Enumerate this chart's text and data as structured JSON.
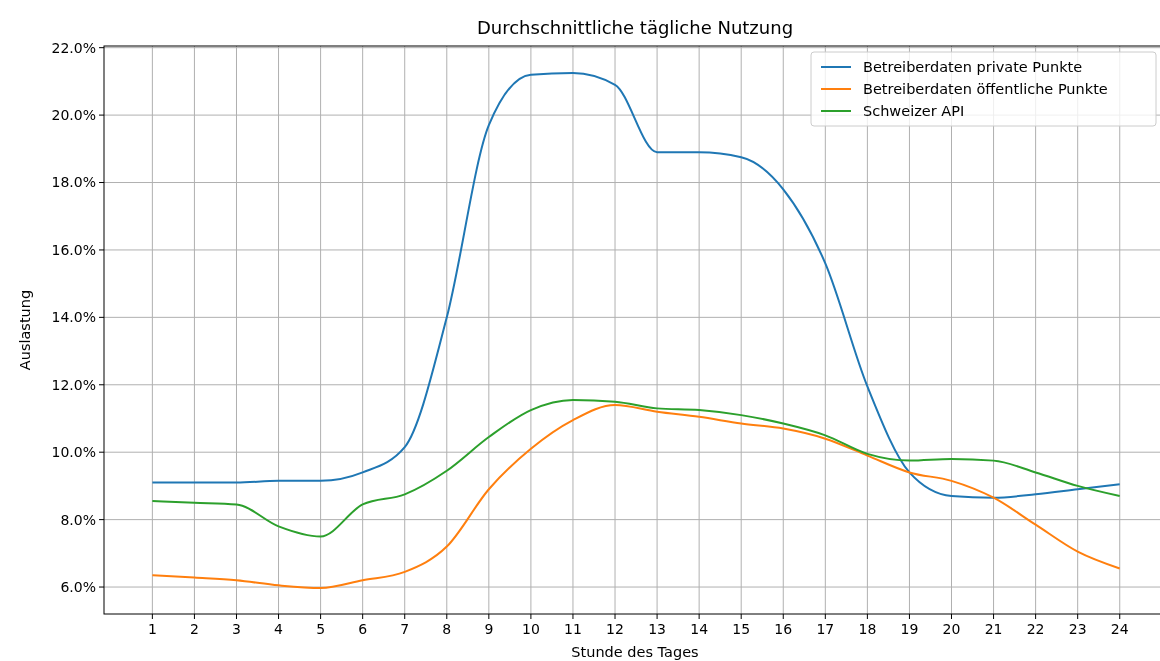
{
  "chart_data": {
    "type": "line",
    "title": "Durchschnittliche tägliche Nutzung",
    "xlabel": "Stunde des Tages",
    "ylabel": "Auslastung",
    "x": [
      1,
      2,
      3,
      4,
      5,
      6,
      7,
      8,
      9,
      10,
      11,
      12,
      13,
      14,
      15,
      16,
      17,
      18,
      19,
      20,
      21,
      22,
      23,
      24
    ],
    "series": [
      {
        "name": "Betreiberdaten private Punkte",
        "color": "#1f77b4",
        "values": [
          9.1,
          9.1,
          9.1,
          9.15,
          9.15,
          9.4,
          10.15,
          14.0,
          19.7,
          21.2,
          21.25,
          20.9,
          18.9,
          18.9,
          18.75,
          17.8,
          15.6,
          11.95,
          9.4,
          8.7,
          8.65,
          8.75,
          8.9,
          9.05
        ]
      },
      {
        "name": "Betreiberdaten öffentliche Punkte",
        "color": "#ff7f0e",
        "values": [
          6.35,
          6.28,
          6.2,
          6.05,
          5.97,
          6.2,
          6.45,
          7.2,
          8.9,
          10.1,
          10.95,
          11.4,
          11.2,
          11.05,
          10.85,
          10.7,
          10.4,
          9.9,
          9.4,
          9.15,
          8.65,
          7.85,
          7.05,
          6.55
        ]
      },
      {
        "name": "Schweizer API",
        "color": "#2ca02c",
        "values": [
          8.55,
          8.5,
          8.45,
          7.8,
          7.5,
          8.45,
          8.75,
          9.45,
          10.45,
          11.25,
          11.55,
          11.5,
          11.3,
          11.25,
          11.1,
          10.85,
          10.5,
          9.95,
          9.75,
          9.8,
          9.75,
          9.4,
          9.0,
          8.7
        ]
      }
    ],
    "xlim": [
      -0.15,
      25.1
    ],
    "xticks": [
      1,
      2,
      3,
      4,
      5,
      6,
      7,
      8,
      9,
      10,
      11,
      12,
      13,
      14,
      15,
      16,
      17,
      18,
      19,
      20,
      21,
      22,
      23,
      24
    ],
    "ylim": [
      5.2,
      22.05
    ],
    "yticks": [
      {
        "value": 6,
        "label": "6.0%"
      },
      {
        "value": 8,
        "label": "8.0%"
      },
      {
        "value": 10,
        "label": "10.0%"
      },
      {
        "value": 12,
        "label": "12.0%"
      },
      {
        "value": 14,
        "label": "14.0%"
      },
      {
        "value": 16,
        "label": "16.0%"
      },
      {
        "value": 18,
        "label": "18.0%"
      },
      {
        "value": 20,
        "label": "20.0%"
      },
      {
        "value": 22,
        "label": "22.0%"
      }
    ],
    "grid": true,
    "legend": "top right",
    "line_style": "solid",
    "marker": "none"
  }
}
